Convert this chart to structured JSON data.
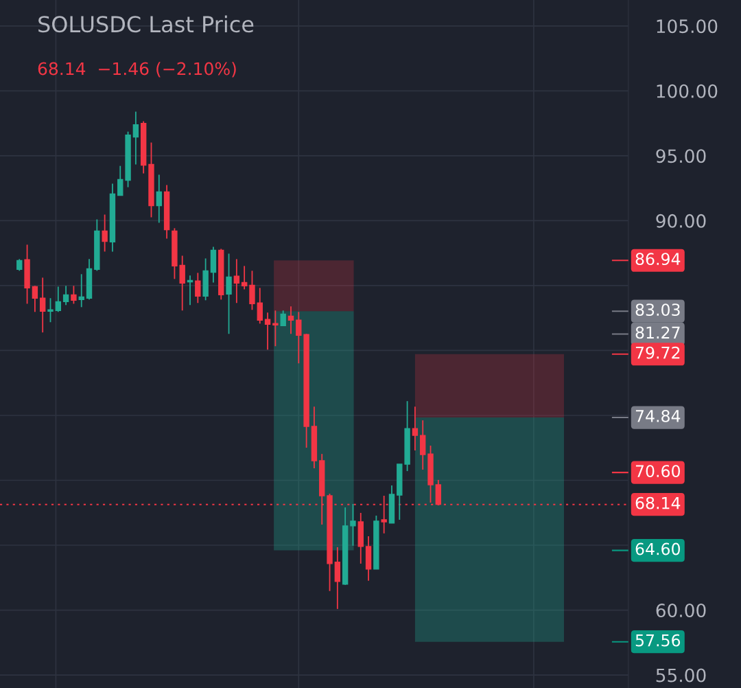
{
  "chart_data": {
    "type": "candlestick",
    "title": "SOLUSDC Last Price",
    "subtitle": "68.14  −1.46 (−2.10%)",
    "categories": [
      null,
      null,
      null,
      null,
      null,
      null,
      null,
      null,
      null,
      null,
      null,
      null,
      null,
      null,
      null,
      null,
      null,
      null,
      null,
      null,
      null,
      null,
      null,
      null,
      null,
      null,
      null,
      null,
      null,
      null,
      null,
      null,
      null,
      null,
      null,
      null,
      null,
      null,
      null,
      null,
      null,
      null,
      null,
      null,
      null,
      null,
      null,
      null,
      null,
      null,
      null,
      null,
      null,
      null,
      null,
      null,
      null,
      null,
      null,
      null,
      null,
      null,
      null,
      null,
      null,
      null,
      null,
      null,
      null,
      null,
      null,
      null,
      null,
      null,
      null,
      null,
      null,
      null,
      null,
      null,
      null
    ],
    "ohlc": [
      null,
      null,
      [
        86.25,
        87.04,
        86.14,
        86.93
      ],
      [
        86.99,
        88.15,
        83.6,
        84.82
      ],
      [
        84.92,
        84.98,
        82.97,
        84.03
      ],
      [
        84.03,
        85.61,
        81.39,
        83.02
      ],
      [
        83.02,
        84.03,
        82.18,
        83.13
      ],
      [
        83.08,
        84.92,
        82.97,
        83.76
      ],
      [
        83.76,
        84.98,
        83.5,
        84.29
      ],
      [
        84.29,
        84.98,
        83.6,
        83.87
      ],
      [
        83.92,
        85.88,
        83.34,
        84.13
      ],
      [
        84.03,
        87.04,
        83.92,
        86.3
      ],
      [
        86.25,
        90.1,
        86.14,
        89.2
      ],
      [
        89.2,
        90.47,
        87.62,
        88.41
      ],
      [
        88.36,
        92.85,
        87.62,
        92.06
      ],
      [
        91.95,
        94.22,
        91.95,
        93.17
      ],
      [
        93.11,
        96.86,
        92.58,
        96.6
      ],
      [
        96.44,
        98.4,
        94.33,
        97.39
      ],
      [
        97.5,
        97.66,
        93.64,
        94.28
      ],
      [
        94.33,
        96.02,
        90.26,
        91.16
      ],
      [
        91.16,
        93.54,
        89.84,
        92.22
      ],
      [
        92.22,
        92.74,
        88.62,
        89.31
      ],
      [
        89.2,
        89.42,
        85.51,
        86.51
      ],
      [
        86.56,
        87.3,
        83.08,
        85.19
      ],
      [
        85.29,
        85.77,
        83.5,
        85.4
      ],
      [
        85.35,
        85.98,
        83.66,
        84.18
      ],
      [
        84.18,
        87.09,
        83.87,
        86.14
      ],
      [
        86.03,
        87.99,
        85.24,
        87.72
      ],
      [
        87.72,
        87.83,
        83.92,
        84.29
      ],
      [
        84.34,
        87.46,
        81.28,
        85.66
      ],
      [
        85.72,
        87.04,
        83.66,
        85.19
      ],
      [
        85.24,
        86.51,
        84.71,
        84.98
      ],
      [
        85.03,
        86.14,
        83.13,
        83.6
      ],
      [
        83.66,
        84.82,
        82.07,
        82.34
      ],
      [
        82.39,
        82.92,
        80.06,
        82.02
      ],
      [
        82.07,
        83.08,
        80.33,
        81.97
      ],
      [
        81.91,
        83.08,
        81.91,
        82.81
      ],
      [
        82.65,
        83.39,
        81.28,
        82.34
      ],
      [
        82.34,
        82.97,
        79.01,
        81.17
      ],
      [
        81.23,
        81.28,
        72.51,
        74.15
      ],
      [
        74.15,
        75.68,
        70.92,
        71.51
      ],
      [
        71.51,
        72.03,
        66.59,
        68.81
      ],
      [
        68.81,
        68.97,
        61.47,
        63.58
      ],
      [
        63.69,
        64.85,
        60.09,
        62.21
      ],
      [
        62.0,
        67.91,
        61.94,
        66.49
      ],
      [
        66.49,
        68.18,
        64.96,
        66.86
      ],
      [
        66.8,
        67.49,
        63.58,
        64.9
      ],
      [
        64.9,
        65.69,
        62.26,
        63.16
      ],
      [
        63.16,
        67.28,
        63.16,
        66.86
      ],
      [
        66.96,
        68.81,
        65.91,
        66.8
      ],
      [
        66.7,
        69.6,
        66.7,
        68.92
      ],
      [
        68.86,
        71.24,
        66.96,
        71.24
      ],
      [
        71.24,
        76.1,
        70.71,
        73.99
      ],
      [
        73.99,
        75.68,
        72.3,
        73.46
      ],
      [
        73.46,
        74.62,
        70.82,
        71.98
      ],
      [
        72.03,
        72.67,
        68.28,
        69.66
      ],
      [
        69.66,
        70.03,
        68.07,
        68.14
      ],
      null,
      null,
      null,
      null,
      null,
      null,
      null,
      null,
      null,
      null,
      null,
      null,
      null,
      null,
      null,
      null,
      null,
      null,
      null,
      null,
      null,
      null,
      null,
      null
    ],
    "ylim": [
      54.0,
      107.0
    ],
    "yticks": [
      {
        "value": 55,
        "label": "55.00"
      },
      {
        "value": 60,
        "label": "60.00"
      },
      {
        "value": 65,
        "label": null
      },
      {
        "value": 70,
        "label": null
      },
      {
        "value": 75,
        "label": null
      },
      {
        "value": 80,
        "label": null
      },
      {
        "value": 85,
        "label": null
      },
      {
        "value": 90,
        "label": "90.00"
      },
      {
        "value": 95,
        "label": "95.00"
      },
      {
        "value": 100,
        "label": "100.00"
      },
      {
        "value": 105,
        "label": "105.00"
      }
    ],
    "ref_lines": [
      {
        "axis": "y",
        "value": 86.94,
        "label": "86.94",
        "color": "#f23645"
      },
      {
        "axis": "y",
        "value": 83.03,
        "label": "83.03",
        "color": "#787b86"
      },
      {
        "axis": "y",
        "value": 81.27,
        "label": "81.27",
        "color": "#787b86"
      },
      {
        "axis": "y",
        "value": 79.72,
        "label": "79.72",
        "color": "#f23645"
      },
      {
        "axis": "y",
        "value": 74.84,
        "label": "74.84",
        "color": "#787b86"
      },
      {
        "axis": "y",
        "value": 70.6,
        "label": "70.60",
        "color": "#f23645"
      },
      {
        "axis": "y",
        "value": 68.14,
        "label": "68.14",
        "color": "#f23645",
        "line_style": "dotted"
      },
      {
        "axis": "y",
        "value": 64.6,
        "label": "64.60",
        "color": "#089981"
      },
      {
        "axis": "y",
        "value": 57.56,
        "label": "57.56",
        "color": "#089981"
      }
    ],
    "grid": true,
    "tick_labels": "y"
  }
}
